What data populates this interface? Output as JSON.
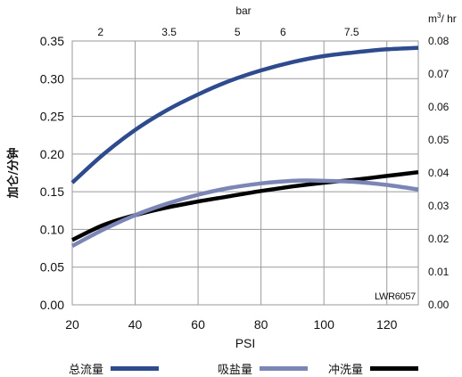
{
  "chart_data": {
    "type": "line",
    "x_axis": {
      "label": "PSI",
      "range": [
        20,
        130
      ],
      "ticks": [
        20,
        40,
        60,
        80,
        100,
        120
      ]
    },
    "x_axis_top": {
      "label": "bar",
      "tick_labels": [
        "2",
        "3.5",
        "5",
        "6",
        "7.5"
      ],
      "tick_psi": [
        29,
        50.8,
        72.5,
        87,
        108.8
      ]
    },
    "y_axis_left": {
      "label": "加仑/分钟",
      "range": [
        0,
        0.35
      ],
      "ticks": [
        "0.00",
        "0.05",
        "0.10",
        "0.15",
        "0.20",
        "0.25",
        "0.30",
        "0.35"
      ]
    },
    "y_axis_right": {
      "label_prefix": "m",
      "label_sup": "3",
      "label_suffix": "/ hr",
      "range": [
        0,
        0.08
      ],
      "ticks": [
        "0.00",
        "0.01",
        "0.02",
        "0.03",
        "0.04",
        "0.05",
        "0.06",
        "0.07",
        "0.08"
      ]
    },
    "grid": true,
    "annotation": "LWR6057",
    "series": [
      {
        "name": "总流量",
        "color": "#2e4b8e",
        "x": [
          20,
          30,
          40,
          50,
          60,
          70,
          80,
          90,
          100,
          110,
          120,
          130
        ],
        "y": [
          0.162,
          0.2,
          0.232,
          0.258,
          0.279,
          0.297,
          0.311,
          0.322,
          0.33,
          0.335,
          0.339,
          0.341
        ]
      },
      {
        "name": "吸盐量",
        "color": "#7c86b6",
        "x": [
          20,
          30,
          40,
          50,
          60,
          70,
          80,
          90,
          95,
          100,
          110,
          120,
          130
        ],
        "y": [
          0.078,
          0.1,
          0.119,
          0.134,
          0.146,
          0.155,
          0.161,
          0.1645,
          0.165,
          0.1645,
          0.163,
          0.159,
          0.153
        ]
      },
      {
        "name": "冲洗量",
        "color": "#000000",
        "x": [
          20,
          30,
          40,
          50,
          60,
          70,
          80,
          90,
          100,
          110,
          120,
          130
        ],
        "y": [
          0.086,
          0.106,
          0.119,
          0.129,
          0.137,
          0.144,
          0.151,
          0.157,
          0.162,
          0.166,
          0.171,
          0.176
        ]
      }
    ]
  }
}
